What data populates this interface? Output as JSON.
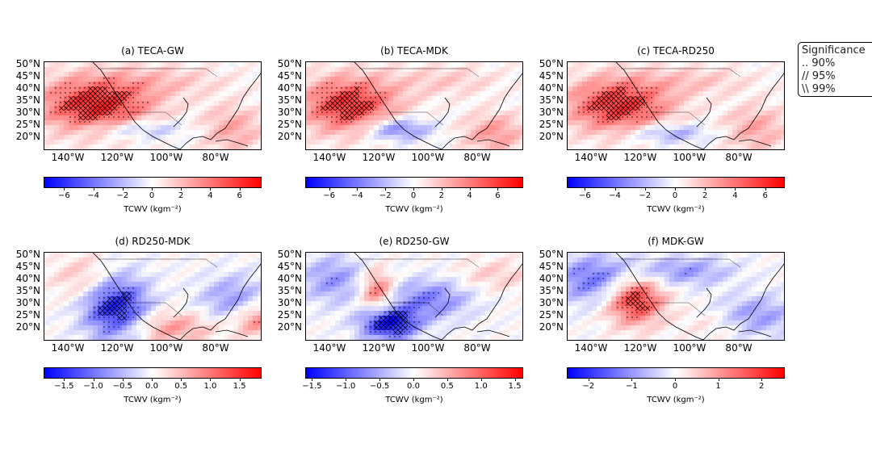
{
  "legend": {
    "title": "Significance",
    "items": [
      ".. 90%",
      "// 95%",
      "\\\\ 99%"
    ]
  },
  "lat_labels": [
    "50°N",
    "45°N",
    "40°N",
    "35°N",
    "30°N",
    "25°N",
    "20°N"
  ],
  "lon_labels": [
    "140°W",
    "120°W",
    "100°W",
    "80°W"
  ],
  "panels": [
    {
      "title": "(a) TECA-GW",
      "cbar_label": "TCWV (kgm⁻²)",
      "ticks": [
        "−6",
        "−4",
        "−2",
        "0",
        "2",
        "4",
        "6"
      ],
      "vmax": 7.4,
      "tick_values": [
        -6,
        -4,
        -2,
        0,
        2,
        4,
        6
      ],
      "field": "a"
    },
    {
      "title": "(b) TECA-MDK",
      "cbar_label": "TCWV (kgm⁻²)",
      "ticks": [
        "−6",
        "−4",
        "−2",
        "0",
        "2",
        "4",
        "6"
      ],
      "vmax": 7.7,
      "tick_values": [
        -6,
        -4,
        -2,
        0,
        2,
        4,
        6
      ],
      "field": "b"
    },
    {
      "title": "(c) TECA-RD250",
      "cbar_label": "TCWV (kgm⁻²)",
      "ticks": [
        "−6",
        "−4",
        "−2",
        "0",
        "2",
        "4",
        "6"
      ],
      "vmax": 7.2,
      "tick_values": [
        -6,
        -4,
        -2,
        0,
        2,
        4,
        6
      ],
      "field": "c"
    },
    {
      "title": "(d) RD250-MDK",
      "cbar_label": "TCWV (kgm⁻²)",
      "ticks": [
        "−1.5",
        "−1.0",
        "−0.5",
        "0.0",
        "0.5",
        "1.0",
        "1.5"
      ],
      "vmax": 1.85,
      "tick_values": [
        -1.5,
        -1,
        -0.5,
        0,
        0.5,
        1,
        1.5
      ],
      "field": "d"
    },
    {
      "title": "(e) RD250-GW",
      "cbar_label": "TCWV (kgm⁻²)",
      "ticks": [
        "−1.5",
        "−1.0",
        "−0.5",
        "0.0",
        "0.5",
        "1.0",
        "1.5"
      ],
      "vmax": 1.6,
      "tick_values": [
        -1.5,
        -1,
        -0.5,
        0,
        0.5,
        1,
        1.5
      ],
      "field": "e"
    },
    {
      "title": "(f) MDK-GW",
      "cbar_label": "TCWV (kgm⁻²)",
      "ticks": [
        "−2",
        "−1",
        "0",
        "1",
        "2"
      ],
      "vmax": 2.5,
      "tick_values": [
        -2,
        -1,
        0,
        1,
        2
      ],
      "field": "f"
    }
  ],
  "colors": {
    "negative": "#0000ff",
    "zero": "#ffffff",
    "positive": "#ff0000"
  }
}
